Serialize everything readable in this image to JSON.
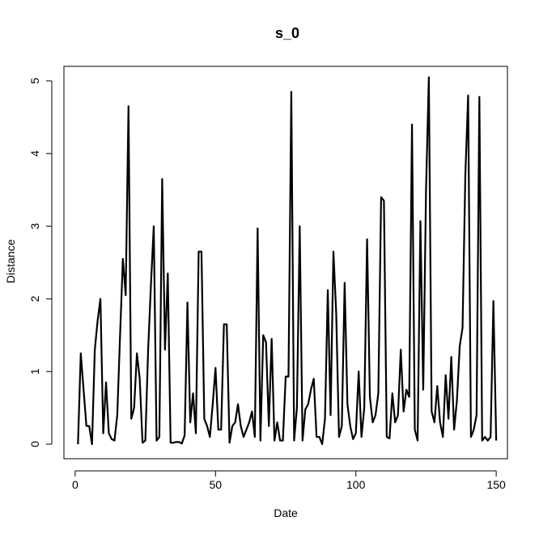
{
  "chart_data": {
    "type": "line",
    "title": "s_0",
    "xlabel": "Date",
    "ylabel": "Distance",
    "xlim": [
      -4,
      154
    ],
    "ylim": [
      -0.2,
      5.2
    ],
    "x_ticks": [
      0,
      50,
      100,
      150
    ],
    "y_ticks": [
      0,
      1,
      2,
      3,
      4,
      5
    ],
    "grid": false,
    "legend": "none",
    "series": [
      {
        "color": "#000000",
        "x": [
          1,
          2,
          3,
          4,
          5,
          6,
          7,
          8,
          9,
          10,
          11,
          12,
          13,
          14,
          15,
          16,
          17,
          18,
          19,
          20,
          21,
          22,
          23,
          24,
          25,
          26,
          27,
          28,
          29,
          30,
          31,
          32,
          33,
          34,
          35,
          36,
          37,
          38,
          39,
          40,
          41,
          42,
          43,
          44,
          45,
          46,
          47,
          48,
          49,
          50,
          51,
          52,
          53,
          54,
          55,
          56,
          57,
          58,
          59,
          60,
          61,
          62,
          63,
          64,
          65,
          66,
          67,
          68,
          69,
          70,
          71,
          72,
          73,
          74,
          75,
          76,
          77,
          78,
          79,
          80,
          81,
          82,
          83,
          84,
          85,
          86,
          87,
          88,
          89,
          90,
          91,
          92,
          93,
          94,
          95,
          96,
          97,
          98,
          99,
          100,
          101,
          102,
          103,
          104,
          105,
          106,
          107,
          108,
          109,
          110,
          111,
          112,
          113,
          114,
          115,
          116,
          117,
          118,
          119,
          120,
          121,
          122,
          123,
          124,
          125,
          126,
          127,
          128,
          129,
          130,
          131,
          132,
          133,
          134,
          135,
          136,
          137,
          138,
          139,
          140,
          141,
          142,
          143,
          144,
          145,
          146,
          147,
          148,
          149,
          150
        ],
        "y": [
          0.0,
          1.25,
          0.75,
          0.25,
          0.25,
          0.0,
          1.3,
          1.7,
          2.0,
          0.15,
          0.85,
          0.15,
          0.07,
          0.05,
          0.4,
          1.5,
          2.55,
          2.05,
          4.65,
          0.35,
          0.5,
          1.25,
          0.9,
          0.02,
          0.05,
          1.3,
          2.2,
          3.0,
          0.05,
          0.1,
          3.65,
          1.3,
          2.35,
          0.02,
          0.02,
          0.03,
          0.03,
          0.01,
          0.12,
          1.95,
          0.3,
          0.7,
          0.15,
          2.65,
          2.65,
          0.35,
          0.25,
          0.1,
          0.55,
          1.05,
          0.2,
          0.2,
          1.65,
          1.65,
          0.02,
          0.25,
          0.3,
          0.55,
          0.25,
          0.1,
          0.2,
          0.3,
          0.45,
          0.1,
          2.97,
          0.05,
          1.5,
          1.4,
          0.25,
          1.45,
          0.05,
          0.3,
          0.05,
          0.05,
          0.93,
          0.93,
          4.85,
          0.05,
          0.5,
          3.0,
          0.05,
          0.48,
          0.55,
          0.75,
          0.9,
          0.1,
          0.1,
          0.0,
          0.35,
          2.12,
          0.4,
          2.65,
          1.8,
          0.1,
          0.25,
          2.22,
          0.55,
          0.25,
          0.07,
          0.15,
          1.0,
          0.1,
          0.5,
          2.82,
          0.65,
          0.3,
          0.4,
          0.7,
          3.4,
          3.35,
          0.1,
          0.08,
          0.7,
          0.3,
          0.4,
          1.3,
          0.45,
          0.75,
          0.65,
          4.4,
          0.2,
          0.05,
          3.07,
          0.75,
          3.5,
          5.05,
          0.45,
          0.3,
          0.8,
          0.3,
          0.1,
          0.95,
          0.35,
          1.2,
          0.2,
          0.6,
          1.35,
          1.6,
          3.7,
          4.8,
          0.1,
          0.2,
          0.4,
          4.78,
          0.05,
          0.1,
          0.05,
          0.1,
          1.97,
          0.05
        ]
      }
    ]
  }
}
